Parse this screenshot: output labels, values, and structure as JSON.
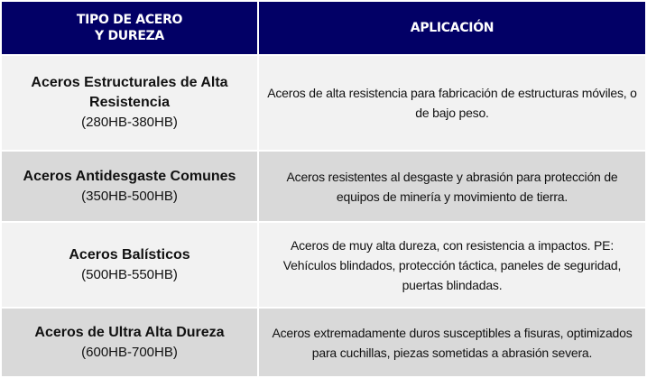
{
  "header": {
    "col1_line1": "TIPO DE ACERO",
    "col1_line2": "Y DUREZA",
    "col2": "APLICACIÓN"
  },
  "rows": [
    {
      "name": "Aceros Estructurales de Alta Resistencia",
      "range": "(280HB-380HB)",
      "application": "Aceros de alta resistencia para fabricación de estructuras móviles, o de bajo peso."
    },
    {
      "name": "Aceros Antidesgaste Comunes",
      "range": "(350HB-500HB)",
      "application": "Aceros resistentes al desgaste y abrasión para protección de equipos de minería y movimiento de tierra."
    },
    {
      "name": "Aceros Balísticos",
      "range": "(500HB-550HB)",
      "application": "Aceros de muy alta dureza, con resistencia a impactos. PE: Vehículos blindados, protección táctica, paneles de seguridad, puertas blindadas."
    },
    {
      "name": "Aceros de Ultra Alta Dureza",
      "range": "(600HB-700HB)",
      "application": "Aceros extremadamente duros susceptibles a fisuras, optimizados para cuchillas, piezas sometidas a abrasión severa."
    }
  ],
  "colors": {
    "header_bg": "#020066",
    "row_light": "#f2f2f2",
    "row_dark": "#d9d9d9"
  }
}
